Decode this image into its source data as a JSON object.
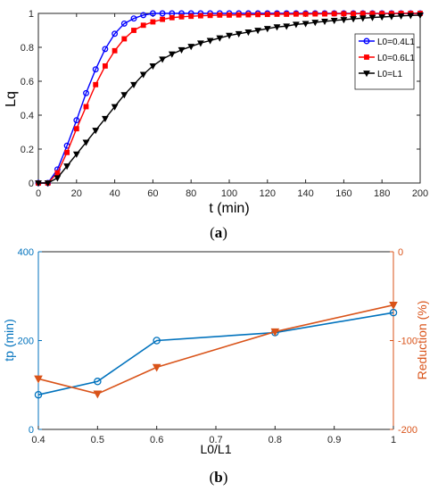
{
  "chart_data": [
    {
      "type": "line",
      "panel_label_prefix": "(",
      "panel_label_letter": "a",
      "panel_label_suffix": ")",
      "xlabel": "t (min)",
      "ylabel": "Lq",
      "xlim": [
        0,
        200
      ],
      "ylim": [
        0,
        1
      ],
      "x_ticks": [
        0,
        20,
        40,
        60,
        80,
        100,
        120,
        140,
        160,
        180,
        200
      ],
      "y_ticks": [
        0,
        0.2,
        0.4,
        0.6,
        0.8,
        1
      ],
      "grid": false,
      "legend_position": "right",
      "x": [
        0,
        5,
        10,
        15,
        20,
        25,
        30,
        35,
        40,
        45,
        50,
        55,
        60,
        65,
        70,
        75,
        80,
        85,
        90,
        95,
        100,
        105,
        110,
        115,
        120,
        125,
        130,
        135,
        140,
        145,
        150,
        155,
        160,
        165,
        170,
        175,
        180,
        185,
        190,
        195,
        200
      ],
      "series": [
        {
          "name": "L0=0.4L1",
          "color": "#0000ff",
          "marker": "circle",
          "values": [
            0,
            0,
            0.08,
            0.22,
            0.37,
            0.53,
            0.67,
            0.79,
            0.88,
            0.94,
            0.97,
            0.99,
            1,
            1,
            1,
            1,
            1,
            1,
            1,
            1,
            1,
            1,
            1,
            1,
            1,
            1,
            1,
            1,
            1,
            1,
            1,
            1,
            1,
            1,
            1,
            1,
            1,
            1,
            1,
            1,
            1
          ]
        },
        {
          "name": "L0=0.6L1",
          "color": "#ff0000",
          "marker": "square",
          "values": [
            0,
            0,
            0.06,
            0.18,
            0.32,
            0.45,
            0.58,
            0.69,
            0.78,
            0.85,
            0.9,
            0.93,
            0.95,
            0.965,
            0.975,
            0.98,
            0.983,
            0.986,
            0.988,
            0.99,
            0.99,
            0.991,
            0.992,
            0.993,
            0.994,
            0.995,
            0.995,
            0.996,
            0.996,
            0.997,
            0.997,
            0.998,
            0.998,
            0.998,
            0.999,
            0.999,
            0.999,
            0.999,
            1,
            1,
            1
          ]
        },
        {
          "name": "L0=L1",
          "color": "#000000",
          "marker": "triangle-down",
          "values": [
            0,
            0,
            0.03,
            0.1,
            0.17,
            0.24,
            0.31,
            0.38,
            0.45,
            0.52,
            0.58,
            0.64,
            0.69,
            0.73,
            0.76,
            0.785,
            0.805,
            0.825,
            0.84,
            0.855,
            0.87,
            0.88,
            0.89,
            0.9,
            0.91,
            0.92,
            0.925,
            0.935,
            0.94,
            0.947,
            0.953,
            0.958,
            0.963,
            0.968,
            0.972,
            0.976,
            0.979,
            0.982,
            0.985,
            0.988,
            0.99
          ]
        }
      ]
    },
    {
      "type": "line",
      "panel_label_prefix": "(",
      "panel_label_letter": "b",
      "panel_label_suffix": ")",
      "xlabel": "L0/L1",
      "ylabel_left": "tp (min)",
      "ylabel_right": "Reduction (%)",
      "xlim": [
        0.4,
        1
      ],
      "ylim_left": [
        0,
        400
      ],
      "ylim_right": [
        -200,
        0
      ],
      "x_ticks": [
        "0.4",
        "0.5",
        "0.6",
        "0.7",
        "0.8",
        "0.9",
        "1"
      ],
      "y_ticks_left": [
        0,
        200,
        400
      ],
      "y_ticks_right": [
        -200,
        -100,
        0
      ],
      "left_axis_color": "#0072bd",
      "right_axis_color": "#d95319",
      "grid": false,
      "series": [
        {
          "axis": "left",
          "color": "#0072bd",
          "marker": "circle",
          "x": [
            0.4,
            0.5,
            0.6,
            0.8,
            1
          ],
          "values": [
            78,
            108,
            200,
            218,
            263
          ]
        },
        {
          "axis": "right",
          "color": "#d95319",
          "marker": "triangle-down",
          "x": [
            0.4,
            0.5,
            0.6,
            0.8,
            1
          ],
          "values": [
            -143,
            -160,
            -130,
            -90,
            -60
          ]
        }
      ]
    }
  ]
}
